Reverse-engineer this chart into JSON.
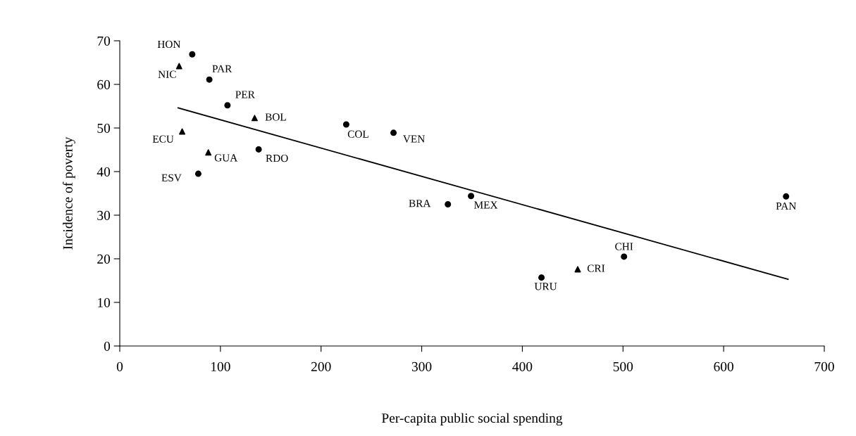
{
  "chart_data": {
    "type": "scatter",
    "xlabel": "Per-capita public social spending",
    "ylabel": "Incidence of poverty",
    "xlim": [
      0,
      700
    ],
    "xticks": [
      0,
      100,
      200,
      300,
      400,
      500,
      600,
      700
    ],
    "ylim": [
      0,
      70
    ],
    "yticks": [
      0,
      10,
      20,
      30,
      40,
      50,
      60,
      70
    ],
    "grid": false,
    "legend": false,
    "series": [
      {
        "marker": "circle",
        "color": "#000000",
        "x": [
          72,
          89,
          107,
          225,
          272,
          138,
          78,
          326,
          349,
          662,
          501,
          419
        ],
        "values": [
          66.9,
          61.1,
          55.2,
          50.8,
          48.9,
          45.1,
          39.5,
          32.5,
          34.4,
          34.3,
          20.5,
          15.7
        ]
      },
      {
        "marker": "triangle",
        "color": "#000000",
        "x": [
          59,
          134,
          62,
          88,
          455
        ],
        "values": [
          64.2,
          52.3,
          49.2,
          44.4,
          17.6
        ]
      },
      {
        "type": "line",
        "color": "#000000",
        "line_style": "solid",
        "marker": "none",
        "x": [
          58,
          664
        ],
        "values": [
          54.6,
          15.3
        ]
      }
    ],
    "annotations": [
      {
        "text": "HON",
        "x": 72,
        "y": 66.9
      },
      {
        "text": "NIC",
        "x": 59,
        "y": 64.2
      },
      {
        "text": "PAR",
        "x": 89,
        "y": 61.1
      },
      {
        "text": "PER",
        "x": 107,
        "y": 55.2
      },
      {
        "text": "BOL",
        "x": 134,
        "y": 52.3
      },
      {
        "text": "ECU",
        "x": 62,
        "y": 49.2
      },
      {
        "text": "COL",
        "x": 225,
        "y": 50.8
      },
      {
        "text": "VEN",
        "x": 272,
        "y": 48.9
      },
      {
        "text": "GUA",
        "x": 88,
        "y": 44.4
      },
      {
        "text": "RDO",
        "x": 138,
        "y": 45.1
      },
      {
        "text": "ESV",
        "x": 78,
        "y": 39.5
      },
      {
        "text": "BRA",
        "x": 326,
        "y": 32.5
      },
      {
        "text": "MEX",
        "x": 349,
        "y": 34.4
      },
      {
        "text": "PAN",
        "x": 662,
        "y": 34.3
      },
      {
        "text": "CHI",
        "x": 501,
        "y": 20.5
      },
      {
        "text": "CRI",
        "x": 455,
        "y": 17.6
      },
      {
        "text": "URU",
        "x": 419,
        "y": 15.7
      }
    ]
  }
}
